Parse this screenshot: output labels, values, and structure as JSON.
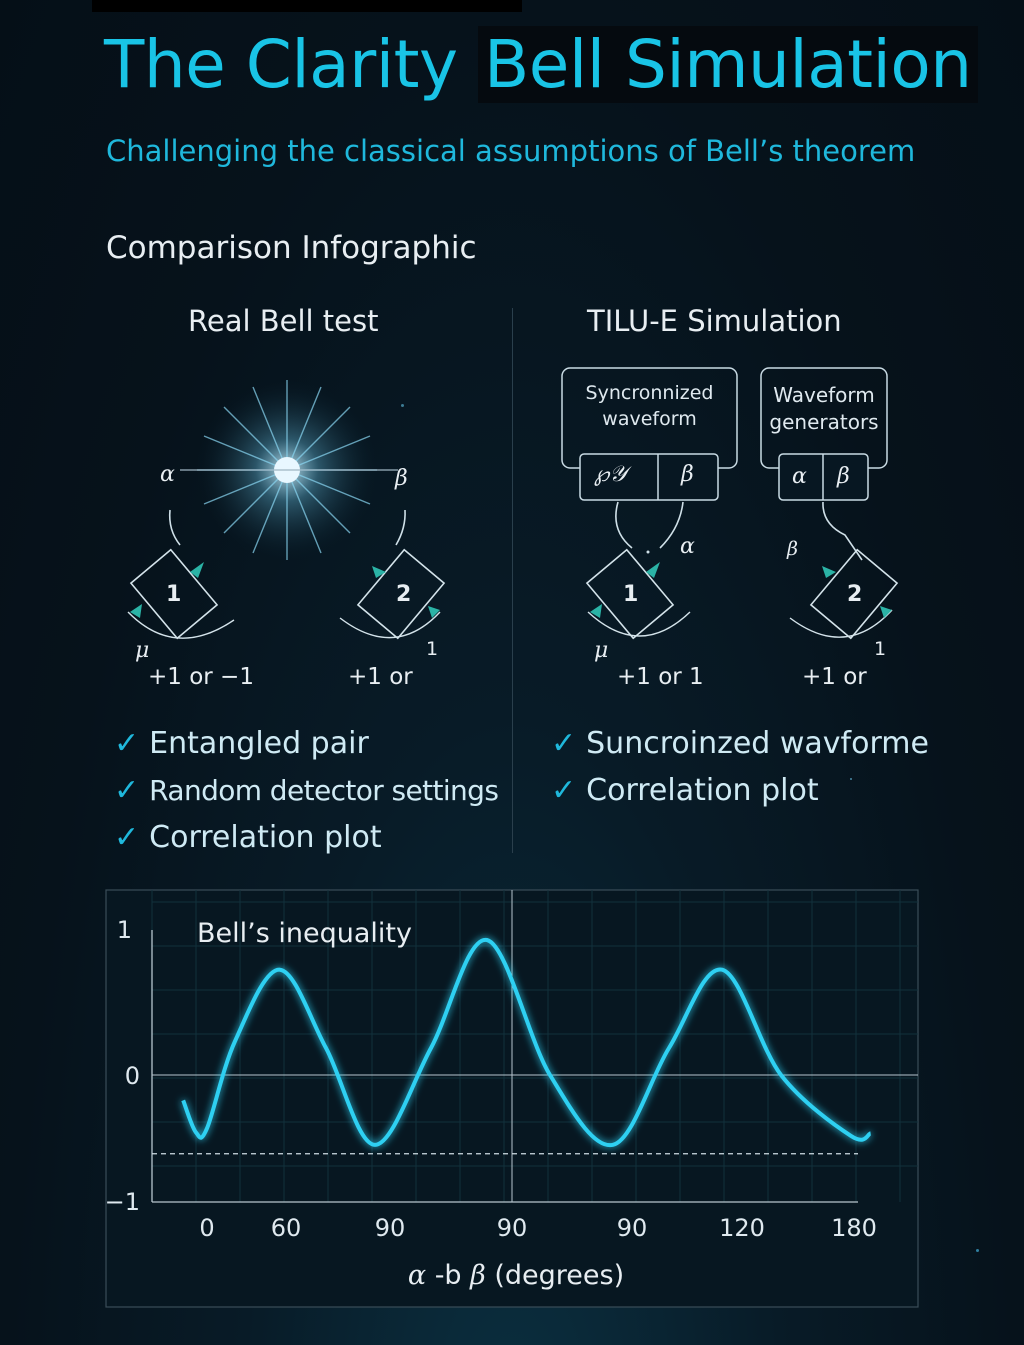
{
  "header": {
    "title_part1": "The Clarity ",
    "title_part2": "Bell Simulation",
    "subtitle": "Challenging the classical assumptions of Bell’s theorem",
    "section": "Comparison Infographic"
  },
  "left": {
    "heading": "Real Bell test",
    "alpha": "α",
    "beta": "β",
    "mu": "μ",
    "detector1": "1",
    "detector2": "2",
    "det2_corner": "1",
    "out1": "+1 or −1",
    "out2": "+1 or",
    "checks": [
      "Entangled pair",
      "Random detector settings",
      "Correlation plot"
    ]
  },
  "right": {
    "heading": "TILU-E Simulation",
    "box1_line1": "Syncronnized",
    "box1_line2": "waveform",
    "box1_cell1": "℘𝒴",
    "box1_cell2": "β",
    "box2_line1": "Waveform",
    "box2_line2": "generators",
    "box2_cell1": "α",
    "box2_cell2": "β",
    "alpha": "α",
    "beta": "β",
    "mu": "μ",
    "detector1": "1",
    "detector2": "2",
    "det2_corner": "1",
    "out1": "+1 or 1",
    "out2": "+1 or",
    "checks": [
      "Suncroinzed wavforme",
      "Correlation plot"
    ]
  },
  "check_mark": "✓",
  "chart_data": {
    "type": "line",
    "title": "Bell’s inequality",
    "xlabel_greek1": "α",
    "xlabel_mid": " -b ",
    "xlabel_greek2": "β",
    "xlabel_units": " (degrees)",
    "x_tick_labels": [
      "0",
      "60",
      "90",
      "90",
      "90",
      "120",
      "180"
    ],
    "y_tick_labels": [
      "1",
      "0",
      "−1"
    ],
    "ylim": [
      -1,
      1
    ],
    "threshold_y": -0.62,
    "series": [
      {
        "color": "#2fd0f2",
        "points": [
          [
            -0.17,
            -0.2
          ],
          [
            -0.08,
            -0.45
          ],
          [
            0.0,
            -0.42
          ],
          [
            0.2,
            0.25
          ],
          [
            0.52,
            0.78
          ],
          [
            0.85,
            0.2
          ],
          [
            1.2,
            -0.55
          ],
          [
            1.6,
            0.2
          ],
          [
            2.0,
            1.0
          ],
          [
            2.45,
            0.0
          ],
          [
            2.9,
            -0.55
          ],
          [
            3.3,
            0.2
          ],
          [
            3.68,
            0.78
          ],
          [
            4.1,
            0.0
          ],
          [
            4.6,
            -0.48
          ],
          [
            4.74,
            -0.46
          ]
        ]
      }
    ]
  }
}
